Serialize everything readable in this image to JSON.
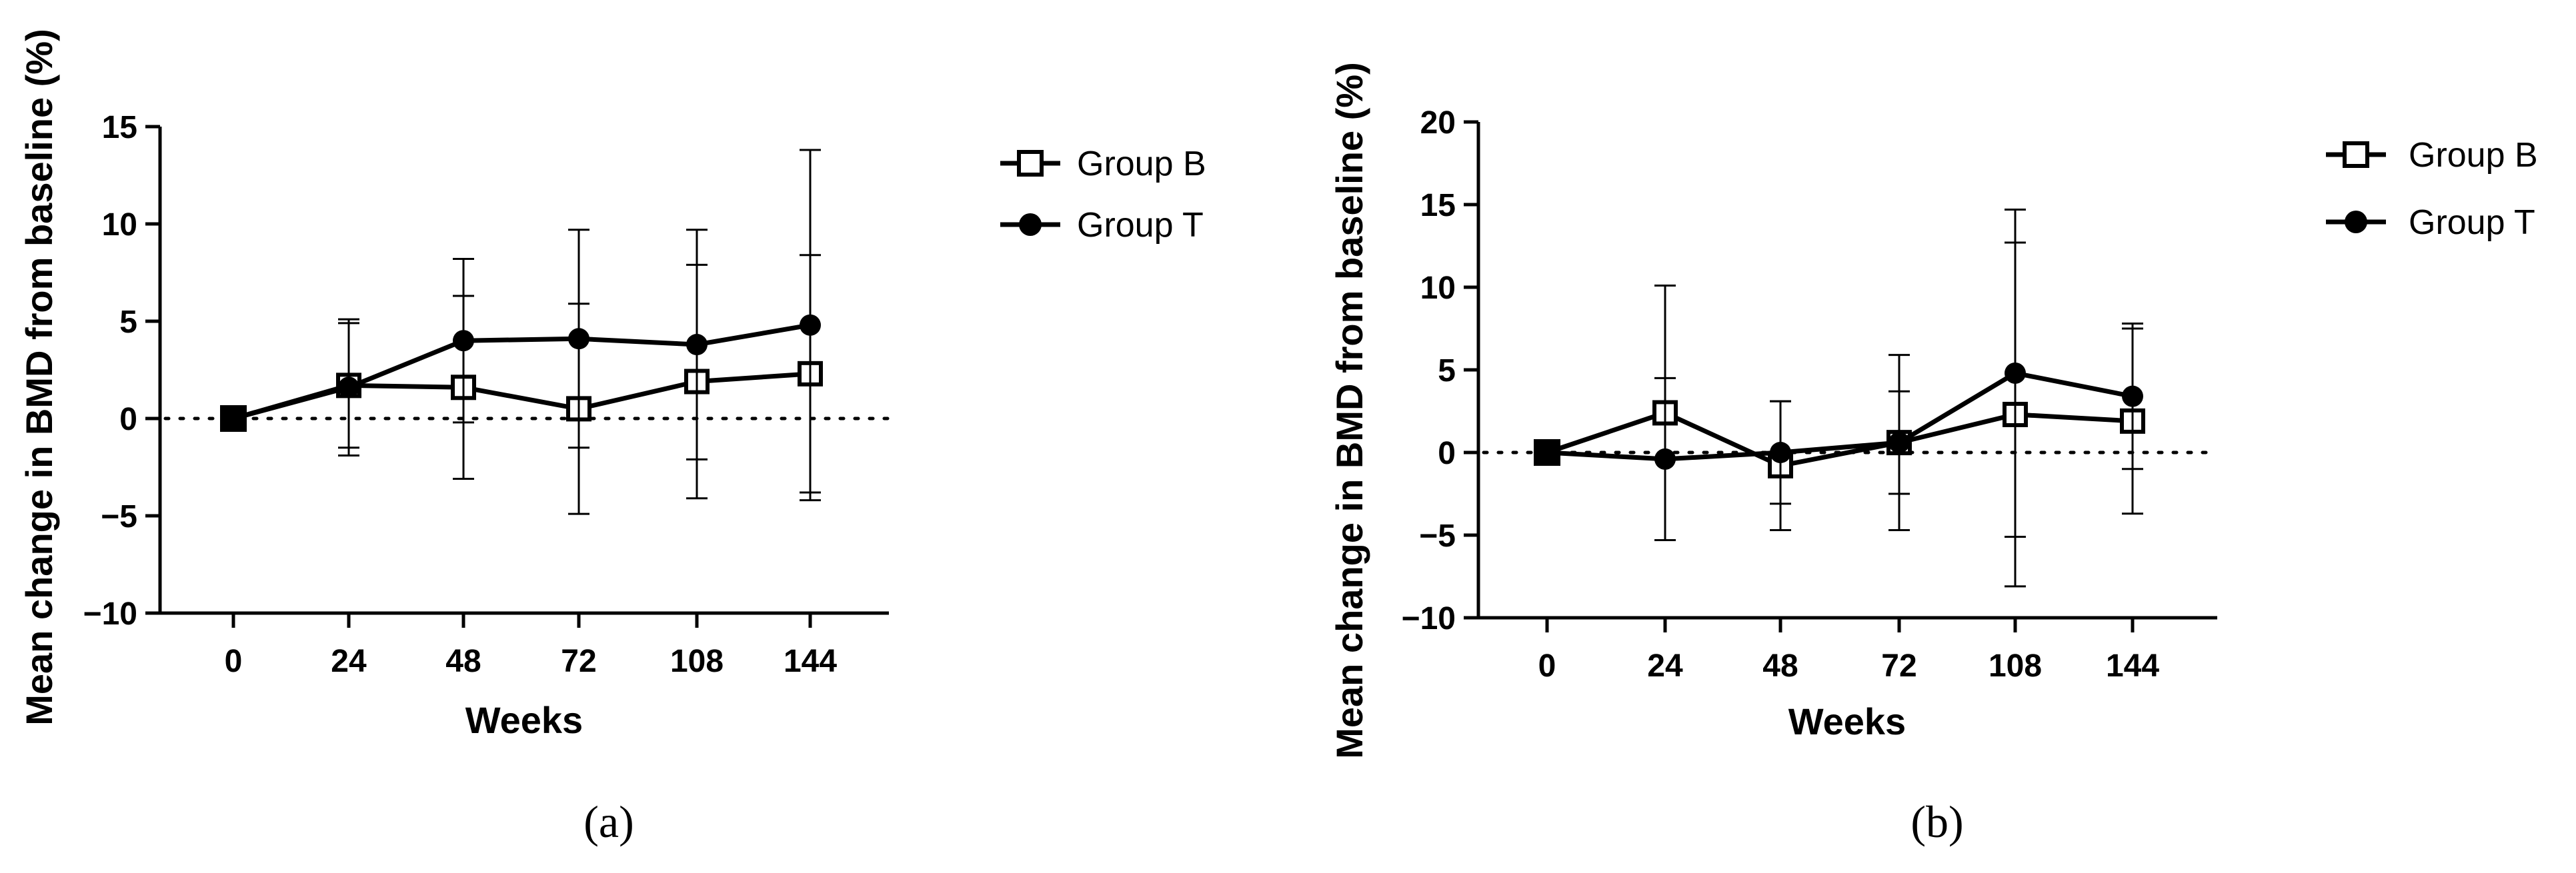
{
  "chart_data": [
    {
      "type": "line",
      "panel_label": "(a)",
      "xlabel": "Weeks",
      "ylabel": "Mean change in BMD from baseline (%)",
      "categories": [
        "0",
        "24",
        "48",
        "72",
        "108",
        "144"
      ],
      "ylim": [
        -10,
        15
      ],
      "yticks": [
        -10,
        -5,
        0,
        5,
        10,
        15
      ],
      "reference_line": 0,
      "grid": false,
      "legend_position": "top-right",
      "series": [
        {
          "name": "Group B",
          "marker": "open-square",
          "values": [
            0,
            1.7,
            1.6,
            0.5,
            1.9,
            2.3
          ],
          "error": [
            0,
            3.2,
            4.7,
            5.4,
            6.0,
            6.1
          ]
        },
        {
          "name": "Group T",
          "marker": "filled-circle",
          "values": [
            0,
            1.6,
            4.0,
            4.1,
            3.8,
            4.8
          ],
          "error": [
            0,
            3.5,
            4.2,
            5.6,
            5.9,
            9.0
          ]
        }
      ]
    },
    {
      "type": "line",
      "panel_label": "(b)",
      "xlabel": "Weeks",
      "ylabel": "Mean change in BMD from baseline (%)",
      "categories": [
        "0",
        "24",
        "48",
        "72",
        "108",
        "144"
      ],
      "ylim": [
        -10,
        20
      ],
      "yticks": [
        -10,
        -5,
        0,
        5,
        10,
        15,
        20
      ],
      "reference_line": 0,
      "grid": false,
      "legend_position": "top-right",
      "series": [
        {
          "name": "Group B",
          "marker": "open-square",
          "values": [
            0,
            2.4,
            -0.8,
            0.6,
            2.3,
            1.9
          ],
          "error": [
            0,
            7.7,
            3.9,
            5.3,
            10.4,
            5.6
          ]
        },
        {
          "name": "Group T",
          "marker": "filled-circle",
          "values": [
            0,
            -0.4,
            0.0,
            0.6,
            4.8,
            3.4
          ],
          "error": [
            0,
            4.9,
            3.1,
            3.1,
            9.9,
            4.4
          ]
        }
      ]
    }
  ]
}
